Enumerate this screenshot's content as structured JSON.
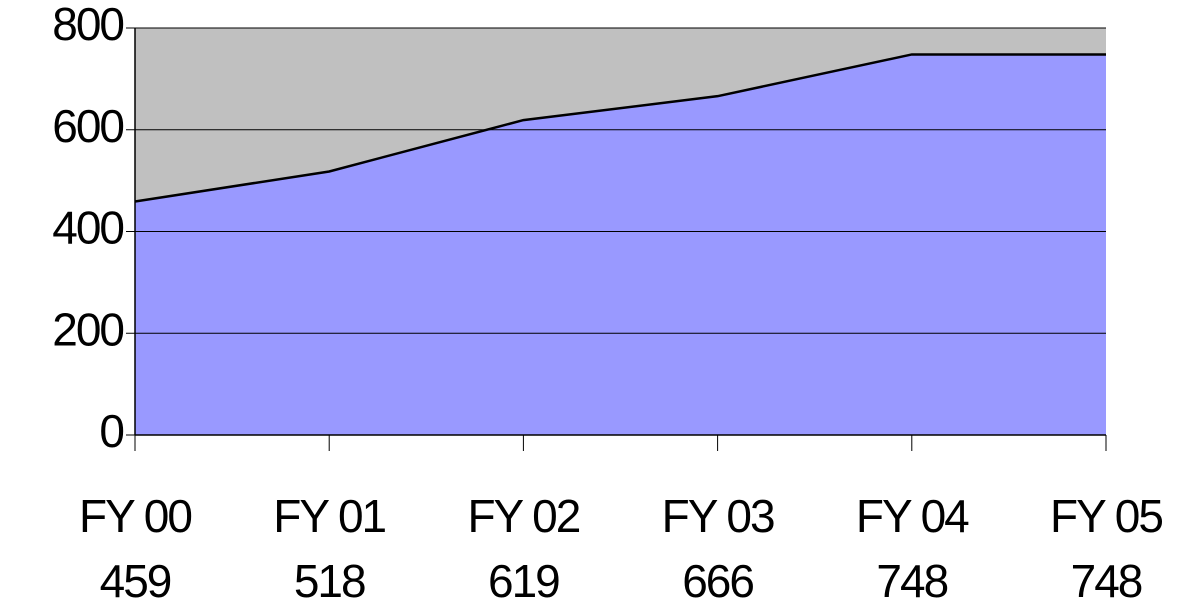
{
  "chart_data": {
    "type": "area",
    "categories": [
      "FY 00",
      "FY 01",
      "FY 02",
      "FY 03",
      "FY 04",
      "FY 05"
    ],
    "values": [
      459,
      518,
      619,
      666,
      748,
      748
    ],
    "color": "#9999ff",
    "background": "#c0c0c0",
    "ylim": [
      0,
      800
    ],
    "yticks": [
      0,
      200,
      400,
      600,
      800
    ],
    "grid": true
  }
}
